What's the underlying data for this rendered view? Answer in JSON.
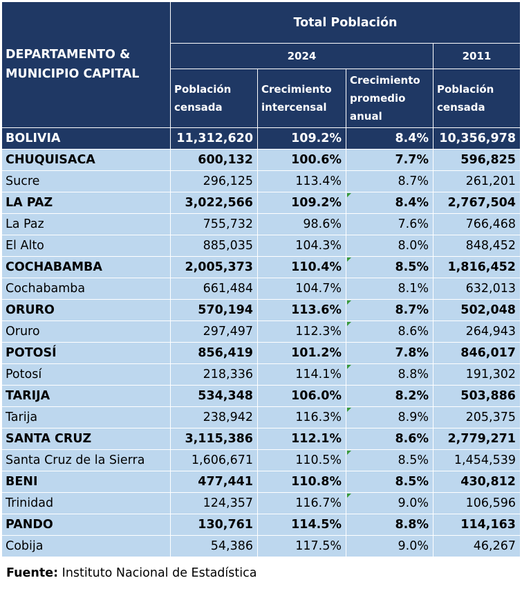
{
  "header": {
    "dept_line1": "DEPARTAMENTO &",
    "dept_line2": "MUNICIPIO CAPITAL",
    "group_title": "Total Población",
    "year_a": "2024",
    "year_b": "2011",
    "col_pop_a_l1": "Población",
    "col_pop_a_l2": "censada",
    "col_growth_l1": "Crecimiento",
    "col_growth_l2": "intercensal",
    "col_avg_l1": "Crecimiento",
    "col_avg_l2": "promedio",
    "col_avg_l3": "anual",
    "col_pop_b_l1": "Población",
    "col_pop_b_l2": "censada"
  },
  "rows": [
    {
      "kind": "total",
      "name": "BOLIVIA",
      "pop2024": "11,312,620",
      "growth": "109.2%",
      "avg": "8.4%",
      "pop2011": "10,356,978",
      "flag": false
    },
    {
      "kind": "dept",
      "name": "CHUQUISACA",
      "pop2024": "600,132",
      "growth": "100.6%",
      "avg": "7.7%",
      "pop2011": "596,825",
      "flag": false
    },
    {
      "kind": "muni",
      "name": "Sucre",
      "pop2024": "296,125",
      "growth": "113.4%",
      "avg": "8.7%",
      "pop2011": "261,201",
      "flag": false
    },
    {
      "kind": "dept",
      "name": "LA PAZ",
      "pop2024": "3,022,566",
      "growth": "109.2%",
      "avg": "8.4%",
      "pop2011": "2,767,504",
      "flag": true
    },
    {
      "kind": "muni",
      "name": "La Paz",
      "pop2024": "755,732",
      "growth": "98.6%",
      "avg": "7.6%",
      "pop2011": "766,468",
      "flag": false
    },
    {
      "kind": "muni",
      "name": "El Alto",
      "pop2024": "885,035",
      "growth": "104.3%",
      "avg": "8.0%",
      "pop2011": "848,452",
      "flag": false
    },
    {
      "kind": "dept",
      "name": "COCHABAMBA",
      "pop2024": "2,005,373",
      "growth": "110.4%",
      "avg": "8.5%",
      "pop2011": "1,816,452",
      "flag": true
    },
    {
      "kind": "muni",
      "name": "Cochabamba",
      "pop2024": "661,484",
      "growth": "104.7%",
      "avg": "8.1%",
      "pop2011": "632,013",
      "flag": false
    },
    {
      "kind": "dept",
      "name": "ORURO",
      "pop2024": "570,194",
      "growth": "113.6%",
      "avg": "8.7%",
      "pop2011": "502,048",
      "flag": true
    },
    {
      "kind": "muni",
      "name": "Oruro",
      "pop2024": "297,497",
      "growth": "112.3%",
      "avg": "8.6%",
      "pop2011": "264,943",
      "flag": true
    },
    {
      "kind": "dept",
      "name": "POTOSÍ",
      "pop2024": "856,419",
      "growth": "101.2%",
      "avg": "7.8%",
      "pop2011": "846,017",
      "flag": false
    },
    {
      "kind": "muni",
      "name": "Potosí",
      "pop2024": "218,336",
      "growth": "114.1%",
      "avg": "8.8%",
      "pop2011": "191,302",
      "flag": true
    },
    {
      "kind": "dept",
      "name": "TARIJA",
      "pop2024": "534,348",
      "growth": "106.0%",
      "avg": "8.2%",
      "pop2011": "503,886",
      "flag": false
    },
    {
      "kind": "muni",
      "name": "Tarija",
      "pop2024": "238,942",
      "growth": "116.3%",
      "avg": "8.9%",
      "pop2011": "205,375",
      "flag": true
    },
    {
      "kind": "dept",
      "name": "SANTA CRUZ",
      "pop2024": "3,115,386",
      "growth": "112.1%",
      "avg": "8.6%",
      "pop2011": "2,779,271",
      "flag": false
    },
    {
      "kind": "muni",
      "name": "Santa Cruz de la Sierra",
      "pop2024": "1,606,671",
      "growth": "110.5%",
      "avg": "8.5%",
      "pop2011": "1,454,539",
      "flag": true
    },
    {
      "kind": "dept",
      "name": "BENI",
      "pop2024": "477,441",
      "growth": "110.8%",
      "avg": "8.5%",
      "pop2011": "430,812",
      "flag": false
    },
    {
      "kind": "muni",
      "name": "Trinidad",
      "pop2024": "124,357",
      "growth": "116.7%",
      "avg": "9.0%",
      "pop2011": "106,596",
      "flag": true
    },
    {
      "kind": "dept",
      "name": "PANDO",
      "pop2024": "130,761",
      "growth": "114.5%",
      "avg": "8.8%",
      "pop2011": "114,163",
      "flag": false
    },
    {
      "kind": "muni",
      "name": "Cobija",
      "pop2024": "54,386",
      "growth": "117.5%",
      "avg": "9.0%",
      "pop2011": "46,267",
      "flag": false
    }
  ],
  "footer": {
    "label": "Fuente:",
    "text": " Instituto Nacional de Estadística"
  },
  "colors": {
    "header_bg": "#1f3864",
    "row_bg": "#bdd7ee",
    "header_text": "#ffffff"
  }
}
